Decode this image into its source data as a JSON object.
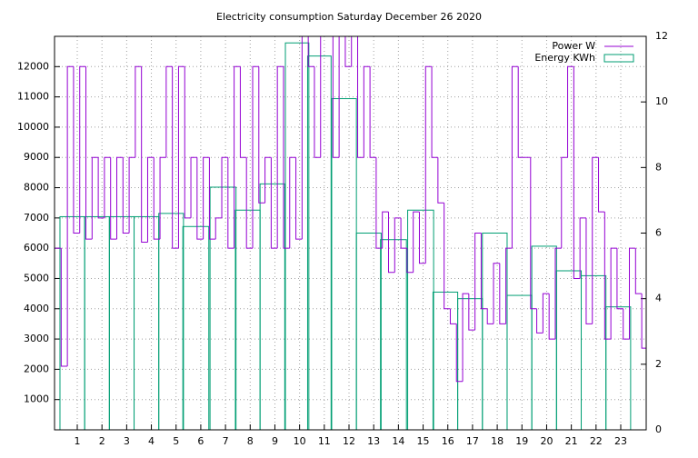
{
  "chart_data": {
    "type": "combo",
    "title": "Electricity consumption Saturday December 26 2020",
    "xlim": [
      0.08,
      24.03
    ],
    "xticks": [
      1,
      2,
      3,
      4,
      5,
      6,
      7,
      8,
      9,
      10,
      11,
      12,
      13,
      14,
      15,
      16,
      17,
      18,
      19,
      20,
      21,
      22,
      23
    ],
    "ylim": [
      0,
      13000
    ],
    "yticks": [
      1000,
      2000,
      3000,
      4000,
      5000,
      6000,
      7000,
      8000,
      9000,
      10000,
      11000,
      12000
    ],
    "y2lim": [
      0,
      12
    ],
    "y2ticks": [
      0,
      2,
      4,
      6,
      8,
      10,
      12
    ],
    "grid": true,
    "legend": "top-right",
    "series": [
      {
        "name": "Power W",
        "color": "#9400d3",
        "style": "steps",
        "x": [
          0.1,
          0.35,
          0.6,
          0.85,
          1.1,
          1.35,
          1.6,
          1.85,
          2.1,
          2.35,
          2.6,
          2.85,
          3.1,
          3.35,
          3.6,
          3.85,
          4.1,
          4.35,
          4.6,
          4.85,
          5.1,
          5.35,
          5.6,
          5.85,
          6.1,
          6.35,
          6.6,
          6.85,
          7.1,
          7.35,
          7.6,
          7.85,
          8.1,
          8.35,
          8.6,
          8.85,
          9.1,
          9.35,
          9.6,
          9.85,
          10.1,
          10.35,
          10.6,
          10.85,
          11.1,
          11.35,
          11.6,
          11.85,
          12.1,
          12.35,
          12.6,
          12.85,
          13.1,
          13.35,
          13.6,
          13.85,
          14.1,
          14.35,
          14.6,
          14.85,
          15.1,
          15.35,
          15.6,
          15.85,
          16.1,
          16.35,
          16.6,
          16.85,
          17.1,
          17.35,
          17.6,
          17.85,
          18.1,
          18.35,
          18.6,
          18.85,
          19.1,
          19.35,
          19.6,
          19.85,
          20.1,
          20.35,
          20.6,
          20.85,
          21.1,
          21.35,
          21.6,
          21.85,
          22.1,
          22.35,
          22.6,
          22.85,
          23.1,
          23.35,
          23.6,
          23.85
        ],
        "values": [
          6000,
          2100,
          12000,
          6500,
          12000,
          6300,
          9000,
          7000,
          9000,
          6300,
          9000,
          6500,
          9000,
          12000,
          6200,
          9000,
          6300,
          9000,
          12000,
          6000,
          12000,
          7000,
          9000,
          6300,
          9000,
          6300,
          7000,
          9000,
          6000,
          12000,
          9000,
          6000,
          12000,
          7500,
          9000,
          6000,
          12000,
          6000,
          9000,
          6300,
          13000,
          12000,
          9000,
          13000,
          13000,
          9000,
          13000,
          12000,
          13000,
          9000,
          12000,
          9000,
          6000,
          7200,
          5200,
          7000,
          6000,
          5200,
          7200,
          5500,
          12000,
          9000,
          7500,
          4000,
          3500,
          1600,
          4500,
          3300,
          6500,
          4000,
          3500,
          5500,
          3500,
          6000,
          12000,
          9000,
          9000,
          4000,
          3200,
          4500,
          3000,
          6000,
          9000,
          12000,
          5000,
          7000,
          3500,
          9000,
          7200,
          3000,
          6000,
          4000,
          3000,
          6000,
          4500,
          2700
        ]
      },
      {
        "name": "Energy KWh",
        "color": "#009e73",
        "style": "boxes",
        "axis": "y2",
        "x": [
          0.8,
          1.8,
          2.8,
          3.8,
          4.8,
          5.8,
          6.9,
          7.9,
          8.9,
          9.9,
          10.8,
          11.8,
          12.8,
          13.8,
          14.9,
          15.9,
          16.9,
          17.9,
          18.9,
          19.9,
          20.9,
          21.9,
          22.9
        ],
        "values": [
          6.5,
          6.5,
          6.5,
          6.5,
          6.6,
          6.2,
          7.4,
          6.7,
          7.5,
          11.8,
          11.4,
          10.1,
          6.0,
          5.8,
          6.7,
          4.2,
          4.0,
          6.0,
          4.1,
          5.6,
          4.85,
          4.7,
          3.75
        ]
      }
    ]
  }
}
